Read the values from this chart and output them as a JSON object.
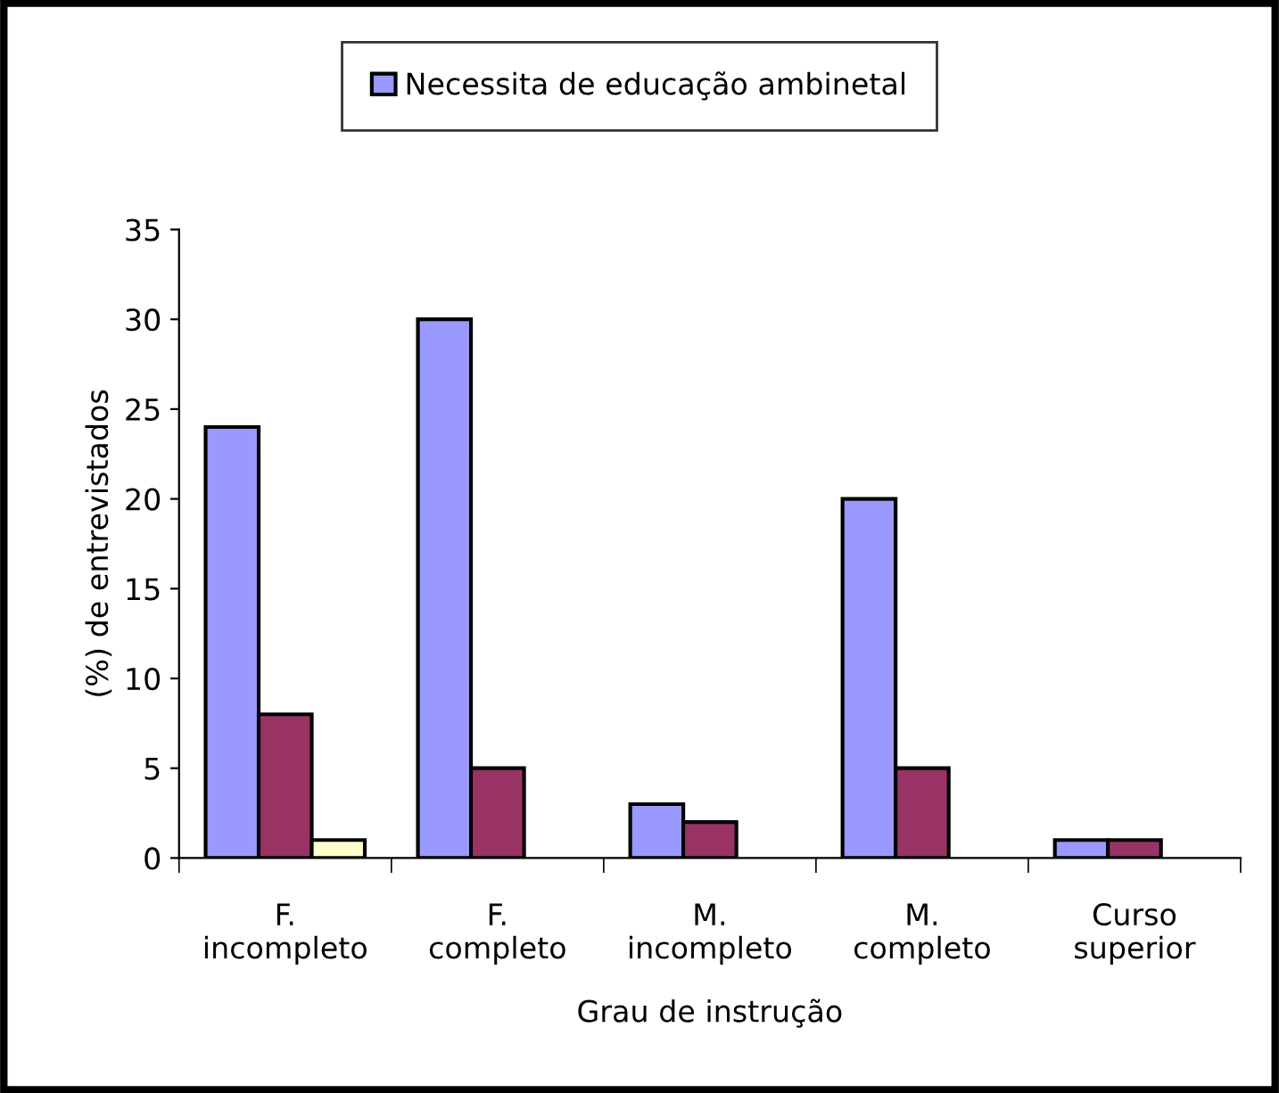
{
  "chart_data": {
    "type": "bar",
    "ylabel": "(%) de entrevistados",
    "xlabel": "Grau de instrução",
    "categories": [
      "F.\nincompleto",
      "F.\ncompleto",
      "M.\nincompleto",
      "M.\ncompleto",
      "Curso\nsuperior"
    ],
    "series": [
      {
        "name": "Necessita de educação ambinetal",
        "color": "#9999ff",
        "values": [
          24,
          30,
          3,
          20,
          1
        ]
      },
      {
        "color": "#993366",
        "values": [
          8,
          5,
          2,
          5,
          1
        ]
      },
      {
        "color": "#ffffcc",
        "values": [
          1,
          null,
          null,
          null,
          null
        ]
      }
    ],
    "ylim": [
      0,
      35
    ],
    "yticks": [
      0,
      5,
      10,
      15,
      20,
      25,
      30,
      35
    ],
    "grid": false,
    "legend": "top"
  }
}
